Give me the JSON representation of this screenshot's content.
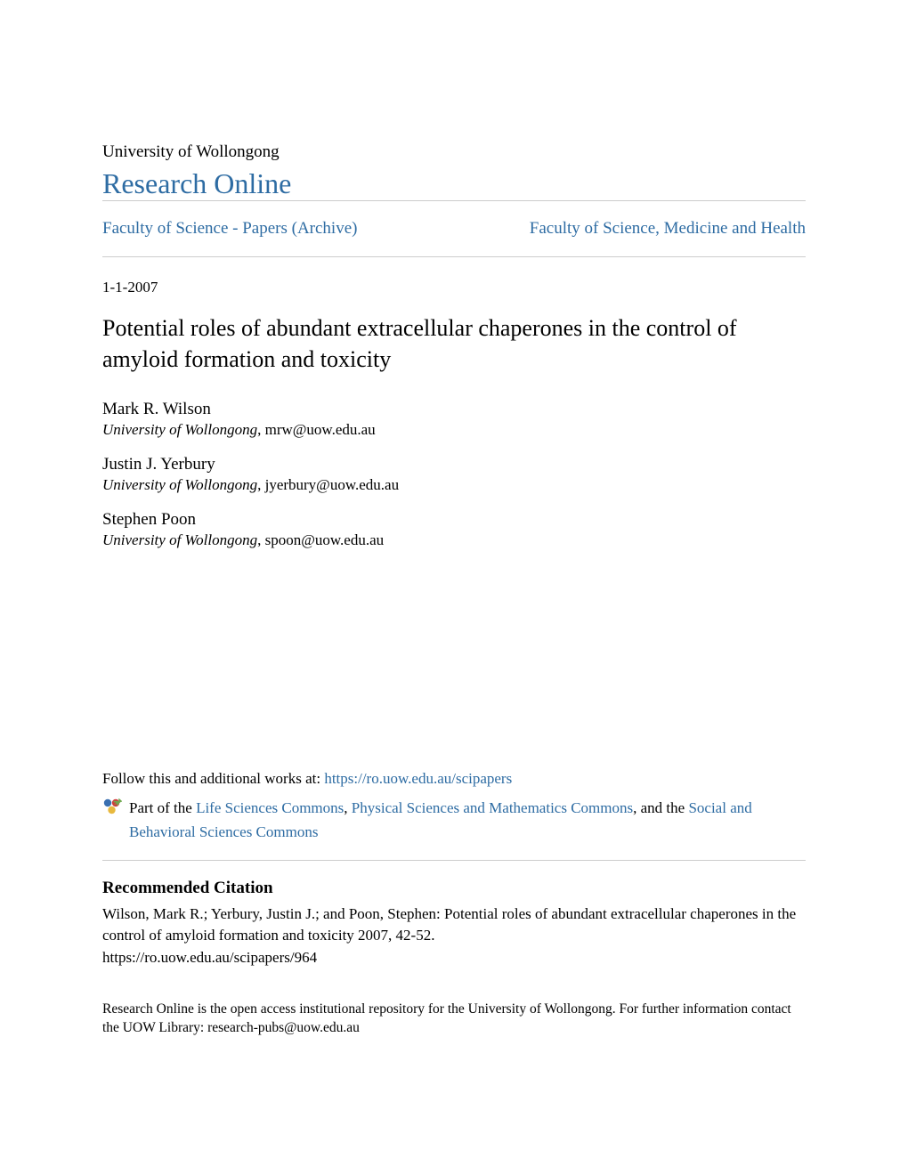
{
  "header": {
    "university": "University of Wollongong",
    "repository": "Research Online"
  },
  "nav": {
    "left": "Faculty of Science - Papers (Archive)",
    "right": "Faculty of Science, Medicine and Health"
  },
  "date": "1-1-2007",
  "title": "Potential roles of abundant extracellular chaperones in the control of amyloid formation and toxicity",
  "authors": [
    {
      "name": "Mark R. Wilson",
      "institution": "University of Wollongong",
      "email": "mrw@uow.edu.au"
    },
    {
      "name": "Justin J. Yerbury",
      "institution": "University of Wollongong",
      "email": "jyerbury@uow.edu.au"
    },
    {
      "name": "Stephen Poon",
      "institution": "University of Wollongong",
      "email": "spoon@uow.edu.au"
    }
  ],
  "follow": {
    "prefix": "Follow this and additional works at: ",
    "url": "https://ro.uow.edu.au/scipapers"
  },
  "commons": {
    "prefix": "Part of the ",
    "link1": "Life Sciences Commons",
    "sep1": ", ",
    "link2": "Physical Sciences and Mathematics Commons",
    "sep2": ", and the ",
    "link3": "Social and Behavioral Sciences Commons"
  },
  "citation": {
    "heading": "Recommended Citation",
    "body": "Wilson, Mark R.; Yerbury, Justin J.; and Poon, Stephen: Potential roles of abundant extracellular chaperones in the control of amyloid formation and toxicity 2007, 42-52.",
    "url": "https://ro.uow.edu.au/scipapers/964"
  },
  "footer": "Research Online is the open access institutional repository for the University of Wollongong. For further information contact the UOW Library: research-pubs@uow.edu.au",
  "colors": {
    "link": "#2e6ca3",
    "text": "#000000",
    "divider": "#cccccc",
    "background": "#ffffff"
  },
  "typography": {
    "base_font": "Georgia, Times New Roman, serif",
    "university_fontsize": 19,
    "repo_title_fontsize": 32,
    "nav_fontsize": 19,
    "date_fontsize": 17,
    "title_fontsize": 26,
    "author_name_fontsize": 19,
    "author_affiliation_fontsize": 17,
    "body_fontsize": 17,
    "citation_heading_fontsize": 19,
    "footer_fontsize": 15.5
  },
  "icon": {
    "commons_colors": {
      "top_left": "#3a6fb0",
      "top_right": "#d13a3a",
      "bottom": "#e8b93e",
      "arrow": "#6fa84f"
    }
  }
}
